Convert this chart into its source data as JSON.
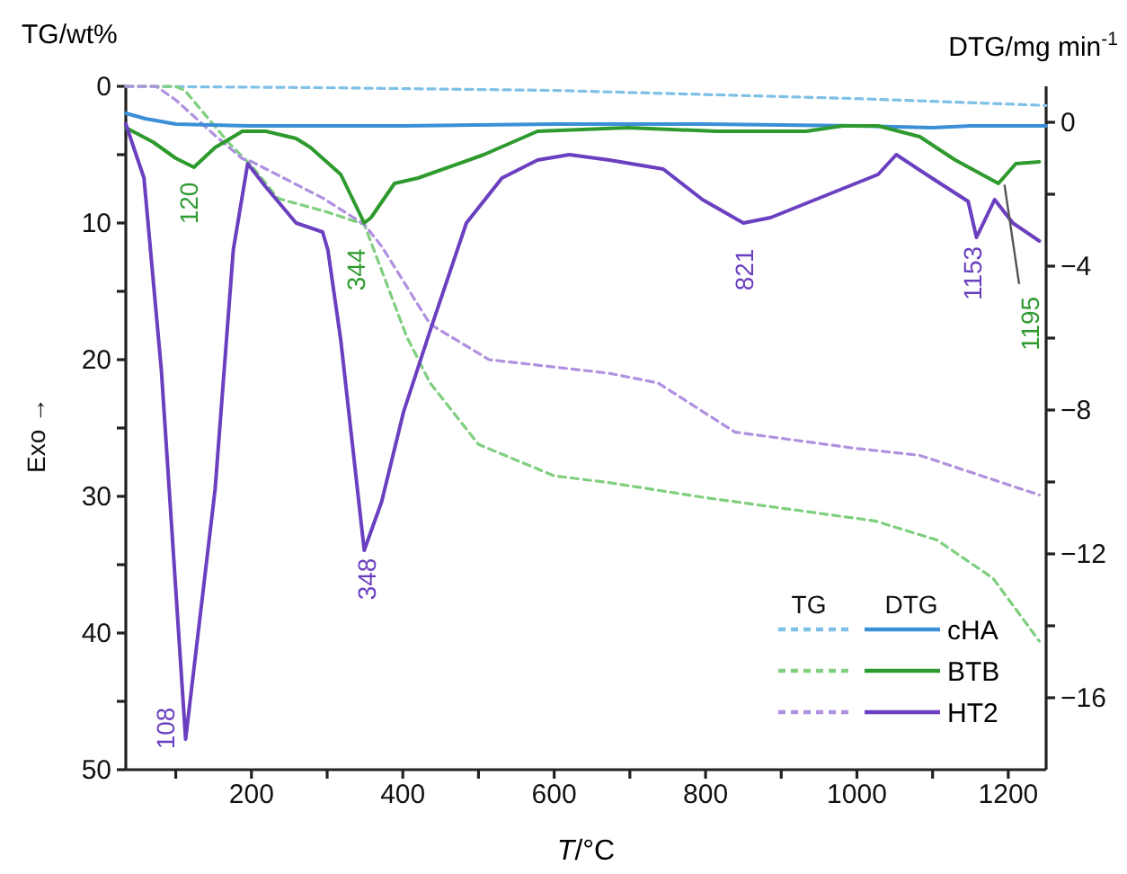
{
  "chart_data": {
    "type": "line",
    "xlabel": "T/°C",
    "ylabel": "TG/wt%",
    "y2label": "DTG/mg min$^{-1}$",
    "xlim": [
      34,
      1250
    ],
    "xticks": [
      {
        "value": 100,
        "label": null
      },
      200,
      {
        "value": 300,
        "label": null
      },
      400,
      {
        "value": 500,
        "label": null
      },
      600,
      {
        "value": 700,
        "label": null
      },
      800,
      {
        "value": 900,
        "label": null
      },
      1000,
      {
        "value": 1100,
        "label": null
      },
      1200
    ],
    "ylim": [
      50,
      0
    ],
    "yticks": [
      0,
      {
        "value": 5,
        "label": null
      },
      10,
      {
        "value": 15,
        "label": null
      },
      20,
      {
        "value": 25,
        "label": null
      },
      30,
      {
        "value": 35,
        "label": null
      },
      40,
      {
        "value": 45,
        "label": null
      },
      50
    ],
    "y2lim": [
      -18,
      1
    ],
    "y2ticks": [
      0,
      {
        "value": -2,
        "label": null
      },
      {
        "value": -4,
        "label": "−4"
      },
      {
        "value": -6,
        "label": null
      },
      {
        "value": -8,
        "label": "−8"
      },
      {
        "value": -10,
        "label": null
      },
      {
        "value": -12,
        "label": "−12"
      },
      {
        "value": -14,
        "label": null
      },
      {
        "value": -16,
        "label": "−16"
      }
    ],
    "grid": false,
    "legend": "bottom right",
    "marker": "none",
    "annotations": [
      "120",
      "344",
      {
        "text": "1195",
        "x": 1195,
        "y": 7.2
      },
      "108",
      "348",
      "821",
      "1153",
      "Exo →",
      "TG",
      "DTG"
    ],
    "series": [
      {
        "color": "#7ec0e6",
        "line_style": "dashed",
        "x": [
          34,
          300,
          600,
          800,
          1000,
          1250
        ],
        "values": [
          0,
          0.1,
          0.3,
          0.6,
          0.9,
          1.4
        ]
      },
      {
        "color": "#7fcf7f",
        "line_style": "dashed",
        "x": [
          34,
          100,
          112,
          130,
          171,
          200,
          235,
          300,
          349,
          405,
          436,
          500,
          600,
          673,
          800,
          1024,
          1106,
          1180,
          1241
        ],
        "values": [
          0,
          0,
          0.3,
          1.5,
          4.2,
          5.8,
          8.2,
          9.2,
          10.1,
          18.3,
          21.7,
          26.2,
          28.5,
          29,
          30.1,
          31.8,
          33.2,
          36,
          40.6
        ]
      },
      {
        "color": "#b090e0",
        "line_style": "dashed",
        "x": [
          34,
          74,
          100,
          152,
          188,
          200,
          295,
          349,
          372,
          436,
          514,
          578,
          673,
          737,
          839,
          1000,
          1083,
          1241
        ],
        "values": [
          0,
          0,
          1,
          3.6,
          5.3,
          5.5,
          8.2,
          10.1,
          11.7,
          17.4,
          20,
          20.4,
          21,
          21.7,
          25.3,
          26.5,
          27,
          29.9
        ]
      },
      {
        "name": "cHA",
        "color": "#3a8fd6",
        "axis": "y2",
        "line_style": "solid",
        "x": [
          34,
          60,
          100,
          200,
          400,
          600,
          800,
          1000,
          1100,
          1150,
          1250
        ],
        "values": [
          0.25,
          0.1,
          -0.05,
          -0.1,
          -0.1,
          -0.05,
          -0.05,
          -0.1,
          -0.15,
          -0.1,
          -0.1
        ]
      },
      {
        "name": "BTB",
        "color": "#2e9a2e",
        "axis": "y2",
        "line_style": "solid",
        "x": [
          34,
          70,
          100,
          124,
          152,
          188,
          219,
          259,
          278,
          318,
          349,
          358,
          389,
          420,
          507,
          578,
          697,
          815,
          933,
          981,
          1028,
          1083,
          1130,
          1187,
          1210,
          1241
        ],
        "values": [
          -0.15,
          -0.55,
          -1.0,
          -1.25,
          -0.7,
          -0.25,
          -0.25,
          -0.45,
          -0.7,
          -1.45,
          -2.8,
          -2.65,
          -1.7,
          -1.55,
          -0.9,
          -0.25,
          -0.15,
          -0.25,
          -0.25,
          -0.1,
          -0.1,
          -0.4,
          -1.05,
          -1.7,
          -1.15,
          -1.1
        ]
      },
      {
        "name": "HT2",
        "color": "#6a3fc0",
        "axis": "y2",
        "line_style": "solid",
        "x": [
          34,
          58,
          81,
          113,
          152,
          176,
          195,
          219,
          259,
          294,
          301,
          318,
          349,
          372,
          401,
          436,
          484,
          531,
          578,
          620,
          673,
          744,
          796,
          850,
          886,
          957,
          1028,
          1052,
          1099,
          1147,
          1158,
          1182,
          1206,
          1241
        ],
        "values": [
          -0.05,
          -1.55,
          -6.9,
          -17.15,
          -10.2,
          -3.55,
          -1.15,
          -1.8,
          -2.8,
          -3.05,
          -3.55,
          -6.05,
          -11.9,
          -10.55,
          -8.05,
          -5.8,
          -2.8,
          -1.55,
          -1.05,
          -0.9,
          -1.05,
          -1.3,
          -2.15,
          -2.8,
          -2.65,
          -2.05,
          -1.45,
          -0.9,
          -1.55,
          -2.2,
          -3.2,
          -2.15,
          -2.8,
          -3.3
        ]
      }
    ]
  }
}
